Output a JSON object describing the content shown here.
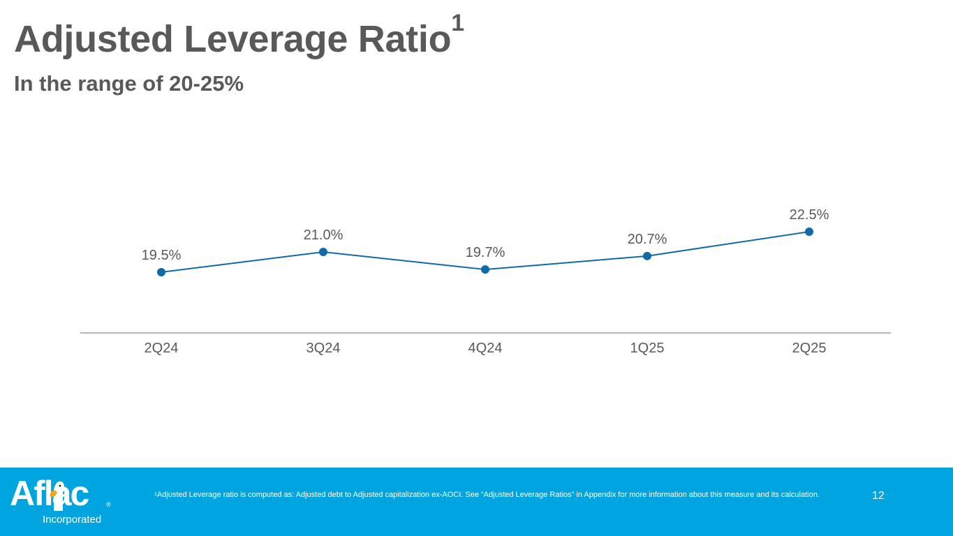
{
  "slide": {
    "title": "Adjusted Leverage Ratio",
    "title_footnote_marker": "1",
    "subtitle": "In the range of 20-25%",
    "page_number": "12"
  },
  "footer": {
    "logo_text": "Aflac",
    "logo_reg": "®",
    "logo_subtext": "Incorporated",
    "footnote_marker": "1",
    "footnote_text": "Adjusted Leverage ratio is computed as: Adjusted debt to Adjusted capitalization ex-AOCI. See “Adjusted Leverage Ratios” in Appendix for more information about this measure and its calculation.",
    "background_color": "#00a5e0"
  },
  "chart_data": {
    "type": "line",
    "title": "Adjusted Leverage Ratio",
    "xlabel": "",
    "ylabel": "",
    "categories": [
      "2Q24",
      "3Q24",
      "4Q24",
      "1Q25",
      "2Q25"
    ],
    "series": [
      {
        "name": "Adjusted Leverage Ratio",
        "values": [
          19.5,
          21.0,
          19.7,
          20.7,
          22.5
        ],
        "labels": [
          "19.5%",
          "21.0%",
          "19.7%",
          "20.7%",
          "22.5%"
        ],
        "color": "#0f6aa8"
      }
    ],
    "ylim": [
      15,
      25
    ],
    "unit": "%",
    "grid": false,
    "legend": "none",
    "y_axis_visible": false
  }
}
